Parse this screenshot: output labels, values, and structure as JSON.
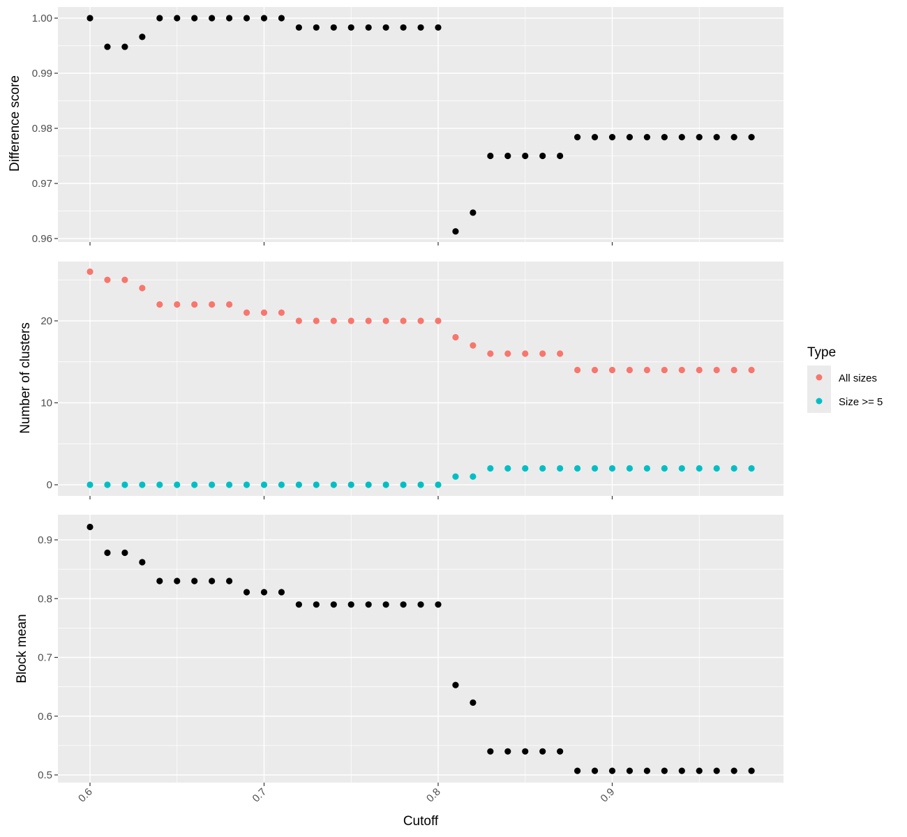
{
  "chart_data": [
    {
      "type": "scatter",
      "ylabel": "Difference score",
      "xlim": [
        0.6,
        0.98
      ],
      "ylim": [
        0.96,
        1.0
      ],
      "y_ticks": [
        0.96,
        0.97,
        0.98,
        0.99,
        1.0
      ],
      "y_tick_labels": [
        "0.96",
        "0.97",
        "0.98",
        "0.99",
        "1.00"
      ],
      "grid": true,
      "series": [
        {
          "color": "#000000",
          "x": [
            0.6,
            0.61,
            0.62,
            0.63,
            0.64,
            0.65,
            0.66,
            0.67,
            0.68,
            0.69,
            0.7,
            0.71,
            0.72,
            0.73,
            0.74,
            0.75,
            0.76,
            0.77,
            0.78,
            0.79,
            0.8,
            0.81,
            0.82,
            0.83,
            0.84,
            0.85,
            0.86,
            0.87,
            0.88,
            0.89,
            0.9,
            0.91,
            0.92,
            0.93,
            0.94,
            0.95,
            0.96,
            0.97,
            0.98
          ],
          "y": [
            1.0,
            0.9948,
            0.9948,
            0.9966,
            1.0,
            1.0,
            1.0,
            1.0,
            1.0,
            1.0,
            1.0,
            1.0,
            0.9983,
            0.9983,
            0.9983,
            0.9983,
            0.9983,
            0.9983,
            0.9983,
            0.9983,
            0.9983,
            0.9613,
            0.9647,
            0.975,
            0.975,
            0.975,
            0.975,
            0.975,
            0.9784,
            0.9784,
            0.9784,
            0.9784,
            0.9784,
            0.9784,
            0.9784,
            0.9784,
            0.9784,
            0.9784,
            0.9784
          ]
        }
      ]
    },
    {
      "type": "scatter",
      "ylabel": "Number of clusters",
      "xlim": [
        0.6,
        0.98
      ],
      "ylim": [
        0,
        26
      ],
      "y_ticks": [
        0,
        10,
        20
      ],
      "y_tick_labels": [
        "0",
        "10",
        "20"
      ],
      "grid": true,
      "legend": {
        "title": "Type",
        "position": "right"
      },
      "series": [
        {
          "name": "All sizes",
          "color": "#F8766D",
          "x": [
            0.6,
            0.61,
            0.62,
            0.63,
            0.64,
            0.65,
            0.66,
            0.67,
            0.68,
            0.69,
            0.7,
            0.71,
            0.72,
            0.73,
            0.74,
            0.75,
            0.76,
            0.77,
            0.78,
            0.79,
            0.8,
            0.81,
            0.82,
            0.83,
            0.84,
            0.85,
            0.86,
            0.87,
            0.88,
            0.89,
            0.9,
            0.91,
            0.92,
            0.93,
            0.94,
            0.95,
            0.96,
            0.97,
            0.98
          ],
          "y": [
            26,
            25,
            25,
            24,
            22,
            22,
            22,
            22,
            22,
            21,
            21,
            21,
            20,
            20,
            20,
            20,
            20,
            20,
            20,
            20,
            20,
            18,
            17,
            16,
            16,
            16,
            16,
            16,
            14,
            14,
            14,
            14,
            14,
            14,
            14,
            14,
            14,
            14,
            14
          ]
        },
        {
          "name": "Size >= 5",
          "color": "#00BFC4",
          "x": [
            0.6,
            0.61,
            0.62,
            0.63,
            0.64,
            0.65,
            0.66,
            0.67,
            0.68,
            0.69,
            0.7,
            0.71,
            0.72,
            0.73,
            0.74,
            0.75,
            0.76,
            0.77,
            0.78,
            0.79,
            0.8,
            0.81,
            0.82,
            0.83,
            0.84,
            0.85,
            0.86,
            0.87,
            0.88,
            0.89,
            0.9,
            0.91,
            0.92,
            0.93,
            0.94,
            0.95,
            0.96,
            0.97,
            0.98
          ],
          "y": [
            0,
            0,
            0,
            0,
            0,
            0,
            0,
            0,
            0,
            0,
            0,
            0,
            0,
            0,
            0,
            0,
            0,
            0,
            0,
            0,
            0,
            1,
            1,
            2,
            2,
            2,
            2,
            2,
            2,
            2,
            2,
            2,
            2,
            2,
            2,
            2,
            2,
            2,
            2
          ]
        }
      ]
    },
    {
      "type": "scatter",
      "ylabel": "Block mean",
      "xlabel": "Cutoff",
      "xlim": [
        0.6,
        0.98
      ],
      "ylim": [
        0.5,
        0.92
      ],
      "x_ticks": [
        0.6,
        0.7,
        0.8,
        0.9
      ],
      "x_tick_labels": [
        "0.6",
        "0.7",
        "0.8",
        "0.9"
      ],
      "y_ticks": [
        0.5,
        0.6,
        0.7,
        0.8,
        0.9
      ],
      "y_tick_labels": [
        "0.5",
        "0.6",
        "0.7",
        "0.8",
        "0.9"
      ],
      "grid": true,
      "series": [
        {
          "color": "#000000",
          "x": [
            0.6,
            0.61,
            0.62,
            0.63,
            0.64,
            0.65,
            0.66,
            0.67,
            0.68,
            0.69,
            0.7,
            0.71,
            0.72,
            0.73,
            0.74,
            0.75,
            0.76,
            0.77,
            0.78,
            0.79,
            0.8,
            0.81,
            0.82,
            0.83,
            0.84,
            0.85,
            0.86,
            0.87,
            0.88,
            0.89,
            0.9,
            0.91,
            0.92,
            0.93,
            0.94,
            0.95,
            0.96,
            0.97,
            0.98
          ],
          "y": [
            0.922,
            0.878,
            0.878,
            0.862,
            0.83,
            0.83,
            0.83,
            0.83,
            0.83,
            0.811,
            0.811,
            0.811,
            0.79,
            0.79,
            0.79,
            0.79,
            0.79,
            0.79,
            0.79,
            0.79,
            0.79,
            0.653,
            0.623,
            0.54,
            0.54,
            0.54,
            0.54,
            0.54,
            0.507,
            0.507,
            0.507,
            0.507,
            0.507,
            0.507,
            0.507,
            0.507,
            0.507,
            0.507,
            0.507
          ]
        }
      ]
    }
  ]
}
